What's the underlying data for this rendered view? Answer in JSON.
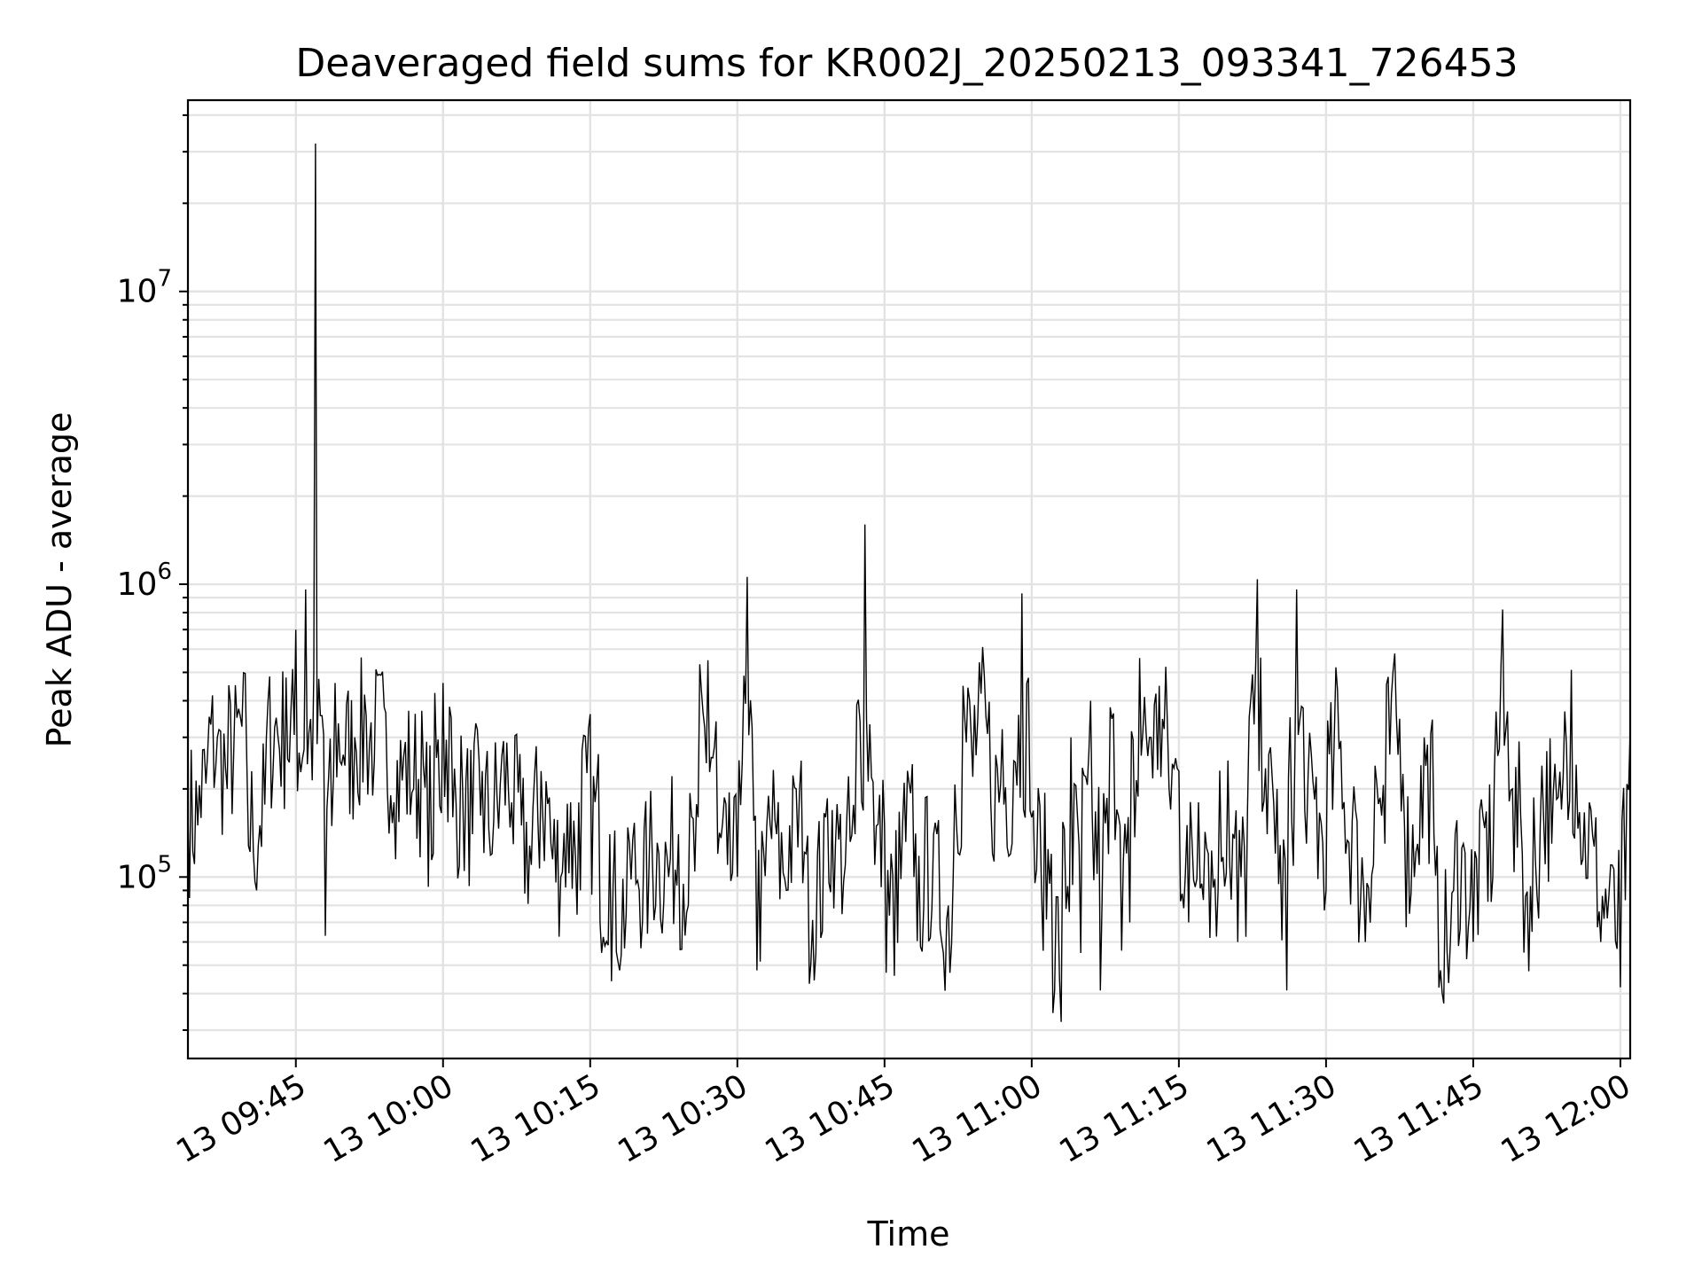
{
  "chart_data": {
    "type": "line",
    "title": "Deaveraged field sums for KR002J_20250213_093341_726453",
    "xlabel": "Time",
    "ylabel": "Peak ADU - average",
    "x_range": [
      "2025-02-13 09:34",
      "2025-02-13 12:01"
    ],
    "y_range": [
      24000,
      45000000
    ],
    "y_scale": "log",
    "grid": true,
    "line_color": "#000000",
    "x_tick_labels": [
      "13 09:45",
      "13 10:00",
      "13 10:15",
      "13 10:30",
      "13 10:45",
      "13 11:00",
      "13 11:15",
      "13 11:30",
      "13 11:45",
      "13 12:00"
    ],
    "y_tick_labels": [
      {
        "base": "10",
        "exp": "5",
        "value": 100000
      },
      {
        "base": "10",
        "exp": "6",
        "value": 1000000
      },
      {
        "base": "10",
        "exp": "7",
        "value": 10000000
      }
    ],
    "series": [
      {
        "points": [
          [
            "2025-02-13 09:34",
            170000
          ],
          [
            "2025-02-13 09:35",
            150000
          ],
          [
            "2025-02-13 09:36",
            260000
          ],
          [
            "2025-02-13 09:37",
            300000
          ],
          [
            "2025-02-13 09:38",
            200000
          ],
          [
            "2025-02-13 09:39",
            350000
          ],
          [
            "2025-02-13 09:40",
            250000
          ],
          [
            "2025-02-13 09:41",
            90000
          ],
          [
            "2025-02-13 09:42",
            300000
          ],
          [
            "2025-02-13 09:43",
            350000
          ],
          [
            "2025-02-13 09:44",
            480000
          ],
          [
            "2025-02-13 09:45",
            700000
          ],
          [
            "2025-02-13 09:46",
            960000
          ],
          [
            "2025-02-13 09:47",
            32000000
          ],
          [
            "2025-02-13 09:48",
            63000
          ],
          [
            "2025-02-13 09:49",
            460000
          ],
          [
            "2025-02-13 09:50",
            240000
          ],
          [
            "2025-02-13 09:51",
            300000
          ],
          [
            "2025-02-13 09:52",
            420000
          ],
          [
            "2025-02-13 09:53",
            250000
          ],
          [
            "2025-02-13 09:54",
            380000
          ],
          [
            "2025-02-13 09:55",
            180000
          ],
          [
            "2025-02-13 09:56",
            260000
          ],
          [
            "2025-02-13 09:57",
            200000
          ],
          [
            "2025-02-13 09:58",
            240000
          ],
          [
            "2025-02-13 09:59",
            120000
          ],
          [
            "2025-02-13 10:00",
            460000
          ],
          [
            "2025-02-13 10:01",
            160000
          ],
          [
            "2025-02-13 10:02",
            200000
          ],
          [
            "2025-02-13 10:03",
            140000
          ],
          [
            "2025-02-13 10:04",
            230000
          ],
          [
            "2025-02-13 10:05",
            120000
          ],
          [
            "2025-02-13 10:06",
            260000
          ],
          [
            "2025-02-13 10:07",
            180000
          ],
          [
            "2025-02-13 10:08",
            150000
          ],
          [
            "2025-02-13 10:09",
            110000
          ],
          [
            "2025-02-13 10:10",
            230000
          ],
          [
            "2025-02-13 10:11",
            130000
          ],
          [
            "2025-02-13 10:12",
            100000
          ],
          [
            "2025-02-13 10:13",
            180000
          ],
          [
            "2025-02-13 10:14",
            90000
          ],
          [
            "2025-02-13 10:15",
            360000
          ],
          [
            "2025-02-13 10:16",
            70000
          ],
          [
            "2025-02-13 10:17",
            140000
          ],
          [
            "2025-02-13 10:18",
            48000
          ],
          [
            "2025-02-13 10:19",
            130000
          ],
          [
            "2025-02-13 10:20",
            90000
          ],
          [
            "2025-02-13 10:21",
            110000
          ],
          [
            "2025-02-13 10:22",
            120000
          ],
          [
            "2025-02-13 10:23",
            100000
          ],
          [
            "2025-02-13 10:24",
            140000
          ],
          [
            "2025-02-13 10:25",
            80000
          ],
          [
            "2025-02-13 10:26",
            160000
          ],
          [
            "2025-02-13 10:27",
            550000
          ],
          [
            "2025-02-13 10:28",
            120000
          ],
          [
            "2025-02-13 10:29",
            110000
          ],
          [
            "2025-02-13 10:30",
            100000
          ],
          [
            "2025-02-13 10:31",
            1060000
          ],
          [
            "2025-02-13 10:32",
            48000
          ],
          [
            "2025-02-13 10:33",
            150000
          ],
          [
            "2025-02-13 10:34",
            140000
          ],
          [
            "2025-02-13 10:35",
            90000
          ],
          [
            "2025-02-13 10:36",
            200000
          ],
          [
            "2025-02-13 10:37",
            120000
          ],
          [
            "2025-02-13 10:38",
            55000
          ],
          [
            "2025-02-13 10:39",
            160000
          ],
          [
            "2025-02-13 10:40",
            130000
          ],
          [
            "2025-02-13 10:41",
            110000
          ],
          [
            "2025-02-13 10:42",
            140000
          ],
          [
            "2025-02-13 10:43",
            1600000
          ],
          [
            "2025-02-13 10:44",
            110000
          ],
          [
            "2025-02-13 10:45",
            150000
          ],
          [
            "2025-02-13 10:46",
            46000
          ],
          [
            "2025-02-13 10:47",
            210000
          ],
          [
            "2025-02-13 10:48",
            100000
          ],
          [
            "2025-02-13 10:49",
            80000
          ],
          [
            "2025-02-13 10:50",
            140000
          ],
          [
            "2025-02-13 10:51",
            55000
          ],
          [
            "2025-02-13 10:52",
            100000
          ],
          [
            "2025-02-13 10:53",
            450000
          ],
          [
            "2025-02-13 10:54",
            220000
          ],
          [
            "2025-02-13 10:55",
            610000
          ],
          [
            "2025-02-13 10:56",
            120000
          ],
          [
            "2025-02-13 10:57",
            320000
          ],
          [
            "2025-02-13 10:58",
            130000
          ],
          [
            "2025-02-13 10:59",
            930000
          ],
          [
            "2025-02-13 11:00",
            160000
          ],
          [
            "2025-02-13 11:01",
            90000
          ],
          [
            "2025-02-13 11:02",
            120000
          ],
          [
            "2025-02-13 11:03",
            32000
          ],
          [
            "2025-02-13 11:04",
            300000
          ],
          [
            "2025-02-13 11:05",
            55000
          ],
          [
            "2025-02-13 11:06",
            400000
          ],
          [
            "2025-02-13 11:07",
            41000
          ],
          [
            "2025-02-13 11:08",
            380000
          ],
          [
            "2025-02-13 11:09",
            150000
          ],
          [
            "2025-02-13 11:10",
            70000
          ],
          [
            "2025-02-13 11:11",
            560000
          ],
          [
            "2025-02-13 11:12",
            300000
          ],
          [
            "2025-02-13 11:13",
            450000
          ],
          [
            "2025-02-13 11:14",
            200000
          ],
          [
            "2025-02-13 11:15",
            230000
          ],
          [
            "2025-02-13 11:16",
            70000
          ],
          [
            "2025-02-13 11:17",
            180000
          ],
          [
            "2025-02-13 11:18",
            120000
          ],
          [
            "2025-02-13 11:19",
            90000
          ],
          [
            "2025-02-13 11:20",
            250000
          ],
          [
            "2025-02-13 11:21",
            60000
          ],
          [
            "2025-02-13 11:22",
            170000
          ],
          [
            "2025-02-13 11:23",
            1040000
          ],
          [
            "2025-02-13 11:24",
            140000
          ],
          [
            "2025-02-13 11:25",
            200000
          ],
          [
            "2025-02-13 11:26",
            41000
          ],
          [
            "2025-02-13 11:27",
            960000
          ],
          [
            "2025-02-13 11:28",
            130000
          ],
          [
            "2025-02-13 11:29",
            220000
          ],
          [
            "2025-02-13 11:30",
            90000
          ],
          [
            "2025-02-13 11:31",
            520000
          ],
          [
            "2025-02-13 11:32",
            120000
          ],
          [
            "2025-02-13 11:33",
            170000
          ],
          [
            "2025-02-13 11:34",
            60000
          ],
          [
            "2025-02-13 11:35",
            240000
          ],
          [
            "2025-02-13 11:36",
            130000
          ],
          [
            "2025-02-13 11:37",
            580000
          ],
          [
            "2025-02-13 11:38",
            150000
          ],
          [
            "2025-02-13 11:39",
            100000
          ],
          [
            "2025-02-13 11:40",
            300000
          ],
          [
            "2025-02-13 11:41",
            140000
          ],
          [
            "2025-02-13 11:42",
            37000
          ],
          [
            "2025-02-13 11:43",
            90000
          ],
          [
            "2025-02-13 11:44",
            130000
          ],
          [
            "2025-02-13 11:45",
            60000
          ],
          [
            "2025-02-13 11:46",
            160000
          ],
          [
            "2025-02-13 11:47",
            100000
          ],
          [
            "2025-02-13 11:48",
            820000
          ],
          [
            "2025-02-13 11:49",
            200000
          ],
          [
            "2025-02-13 11:50",
            120000
          ],
          [
            "2025-02-13 11:51",
            65000
          ],
          [
            "2025-02-13 11:52",
            240000
          ],
          [
            "2025-02-13 11:53",
            130000
          ],
          [
            "2025-02-13 11:54",
            170000
          ],
          [
            "2025-02-13 11:55",
            510000
          ],
          [
            "2025-02-13 11:56",
            110000
          ],
          [
            "2025-02-13 11:57",
            170000
          ],
          [
            "2025-02-13 11:58",
            60000
          ],
          [
            "2025-02-13 11:59",
            110000
          ],
          [
            "2025-02-13 12:00",
            42000
          ],
          [
            "2025-02-13 12:01",
            320000
          ]
        ]
      }
    ]
  }
}
